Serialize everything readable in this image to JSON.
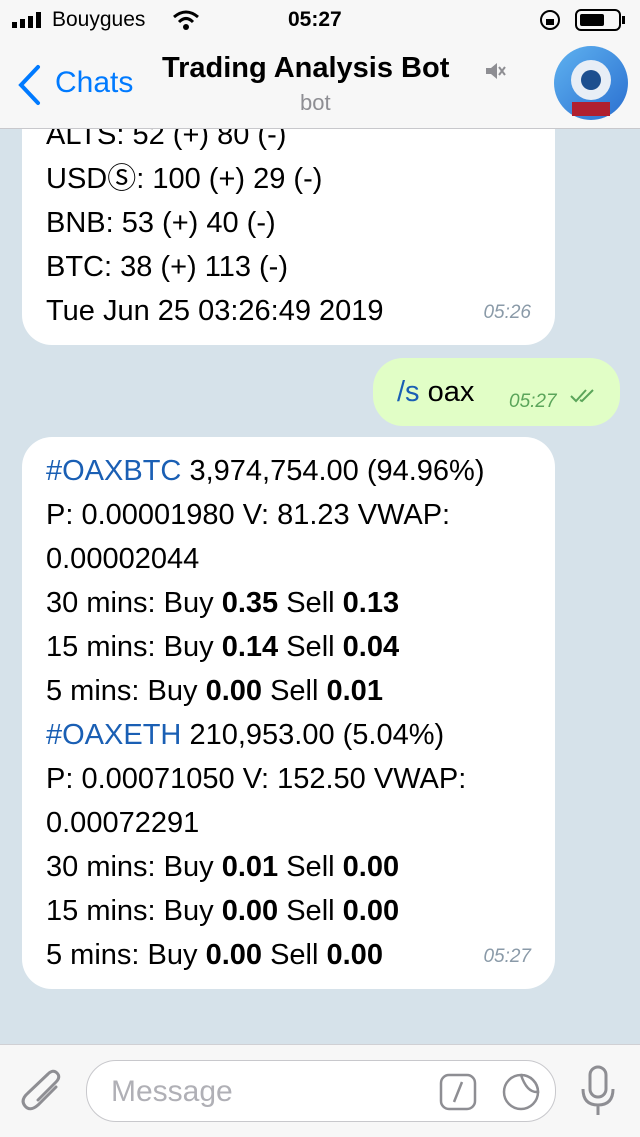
{
  "status_bar": {
    "carrier": "Bouygues",
    "time": "05:27"
  },
  "header": {
    "back": "Chats",
    "title": "Trading Analysis Bot",
    "subtitle": "bot"
  },
  "messages": [
    {
      "lines": [
        "ALTS: 52 (+) 80 (-)",
        "USDⓈ: 100 (+) 29 (-)",
        "BNB: 53 (+) 40 (-)",
        "BTC: 38 (+) 113 (-)",
        "Tue Jun 25 03:26:49 2019"
      ],
      "time": "05:26"
    },
    {
      "command": "/s",
      "argument": "oax",
      "time": "05:27"
    },
    {
      "pairs": [
        {
          "hashtag": "#OAXBTC",
          "summary": "3,974,754.00 (94.96%)",
          "stats": "P: 0.00001980 V: 81.23 VWAP: 0.00002044",
          "periods": [
            {
              "name": "30 mins: Buy",
              "buy": "0.35",
              "sell_label": "Sell",
              "sell": "0.13"
            },
            {
              "name": "15 mins: Buy",
              "buy": "0.14",
              "sell_label": "Sell",
              "sell": "0.04"
            },
            {
              "name": "5 mins: Buy",
              "buy": "0.00",
              "sell_label": "Sell",
              "sell": "0.01"
            }
          ]
        },
        {
          "hashtag": "#OAXETH",
          "summary": "210,953.00 (5.04%)",
          "stats": "P: 0.00071050 V: 152.50 VWAP: 0.00072291",
          "periods": [
            {
              "name": "30 mins: Buy",
              "buy": "0.01",
              "sell_label": "Sell",
              "sell": "0.00"
            },
            {
              "name": "15 mins: Buy",
              "buy": "0.00",
              "sell_label": "Sell",
              "sell": "0.00"
            },
            {
              "name": "5 mins: Buy",
              "buy": "0.00",
              "sell_label": "Sell",
              "sell": "0.00"
            }
          ]
        }
      ],
      "time": "05:27"
    }
  ],
  "input": {
    "placeholder": "Message"
  }
}
